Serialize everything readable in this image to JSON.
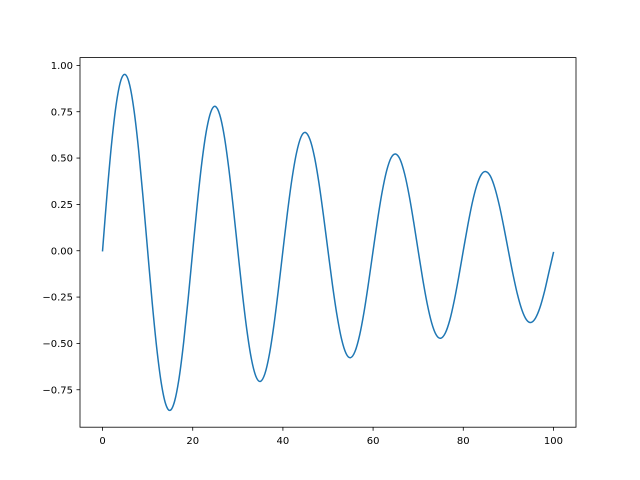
{
  "chart_data": {
    "type": "line",
    "title": "",
    "xlabel": "",
    "ylabel": "",
    "xlim": [
      -5,
      105
    ],
    "ylim": [
      -0.952,
      1.042
    ],
    "grid": false,
    "x_ticks": [
      0,
      20,
      40,
      60,
      80,
      100
    ],
    "x_tick_labels": [
      "0",
      "20",
      "40",
      "60",
      "80",
      "100"
    ],
    "y_ticks": [
      -0.75,
      -0.5,
      -0.25,
      0,
      0.25,
      0.5,
      0.75,
      1.0
    ],
    "y_tick_labels": [
      "−0.75",
      "−0.50",
      "−0.25",
      "0.00",
      "0.25",
      "0.50",
      "0.75",
      "1.00"
    ],
    "series": [
      {
        "color": "#1f77b4",
        "x": [
          0,
          1,
          2,
          3,
          4,
          5,
          6,
          7,
          8,
          9,
          10,
          11,
          12,
          13,
          14,
          15,
          16,
          17,
          18,
          19,
          20,
          21,
          22,
          23,
          24,
          25,
          26,
          27,
          28,
          29,
          30,
          31,
          32,
          33,
          34,
          35,
          36,
          37,
          38,
          39,
          40,
          41,
          42,
          43,
          44,
          45,
          46,
          47,
          48,
          49,
          50,
          51,
          52,
          53,
          54,
          55,
          56,
          57,
          58,
          59,
          60,
          61,
          62,
          63,
          64,
          65,
          66,
          67,
          68,
          69,
          70,
          71,
          72,
          73,
          74,
          75,
          76,
          77,
          78,
          79,
          80,
          81,
          82,
          83,
          84,
          85,
          86,
          87,
          88,
          89,
          90,
          91,
          92,
          93,
          94,
          95,
          96,
          97,
          98,
          99,
          100
        ],
        "y": [
          0,
          0.306,
          0.576,
          0.785,
          0.914,
          0.951,
          0.896,
          0.754,
          0.543,
          0.282,
          0,
          -0.277,
          -0.521,
          -0.71,
          -0.827,
          -0.861,
          -0.81,
          -0.683,
          -0.491,
          -0.256,
          0,
          0.25,
          0.472,
          0.643,
          0.748,
          0.779,
          0.733,
          0.618,
          0.444,
          0.231,
          0,
          -0.227,
          -0.427,
          -0.582,
          -0.677,
          -0.705,
          -0.664,
          -0.559,
          -0.402,
          -0.209,
          0,
          0.205,
          0.386,
          0.526,
          0.613,
          0.638,
          0.6,
          0.506,
          0.364,
          0.189,
          0,
          -0.186,
          -0.349,
          -0.476,
          -0.554,
          -0.577,
          -0.543,
          -0.457,
          -0.329,
          -0.171,
          0,
          0.168,
          0.316,
          0.431,
          0.502,
          0.522,
          0.492,
          0.414,
          0.298,
          0.155,
          0,
          -0.152,
          -0.286,
          -0.39,
          -0.454,
          -0.472,
          -0.445,
          -0.375,
          -0.269,
          -0.14,
          0,
          0.137,
          0.259,
          0.353,
          0.411,
          0.427,
          0.403,
          0.339,
          0.244,
          0.127,
          0,
          -0.124,
          -0.234,
          -0.319,
          -0.372,
          -0.387,
          -0.364,
          -0.307,
          -0.221,
          -0.115,
          -0.01
        ]
      }
    ]
  }
}
